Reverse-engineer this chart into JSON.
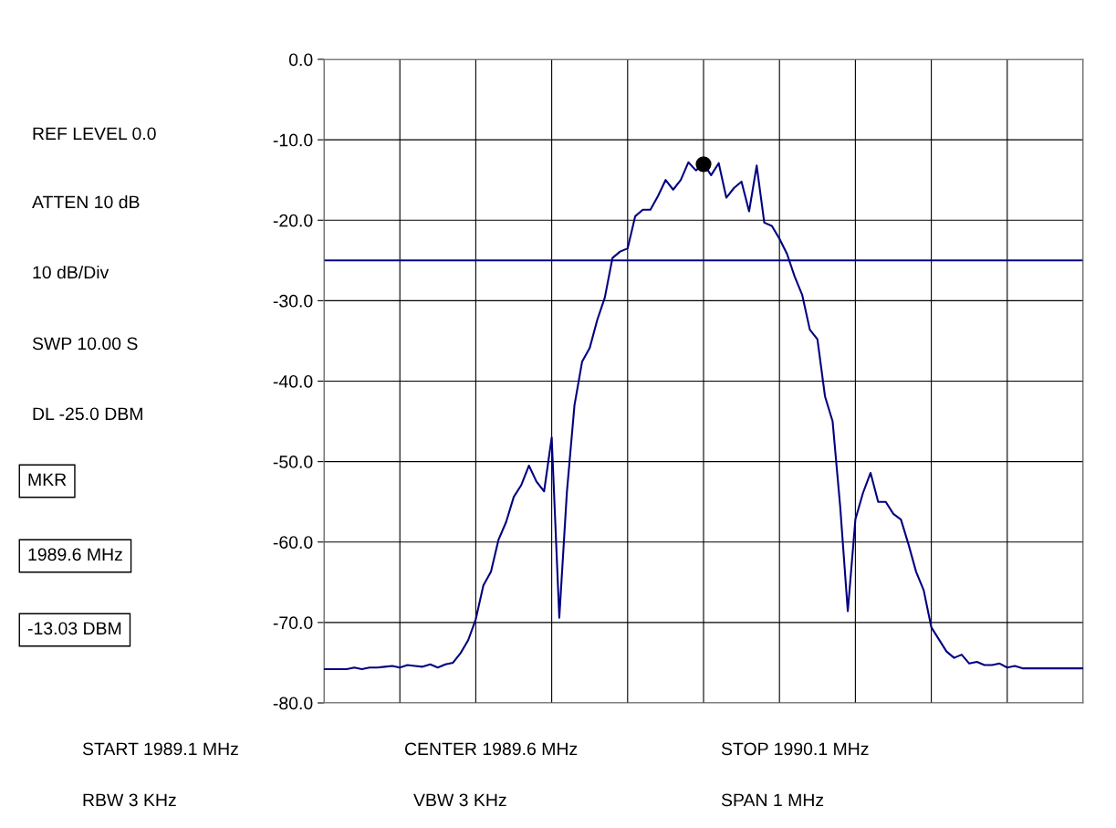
{
  "chart_data": {
    "type": "line",
    "categories": [
      null,
      null,
      null,
      null,
      null,
      null,
      null,
      null,
      null,
      null,
      null,
      null,
      null,
      null,
      null,
      null,
      null,
      null,
      null,
      null,
      null,
      null,
      null,
      null,
      null,
      null,
      null,
      null,
      null,
      null,
      null,
      null,
      null,
      null,
      null,
      null,
      null,
      null,
      null,
      null,
      null,
      null,
      null,
      null,
      null,
      null,
      null,
      null,
      null,
      null,
      null,
      null,
      null,
      null,
      null,
      null,
      null,
      null,
      null,
      null,
      null,
      null,
      null,
      null,
      null,
      null,
      null,
      null,
      null,
      null,
      null,
      null,
      null,
      null,
      null,
      null,
      null,
      null,
      null,
      null,
      null,
      null,
      null,
      null,
      null,
      null,
      null,
      null,
      null,
      null,
      null,
      null,
      null,
      null,
      null,
      null,
      null,
      null,
      null,
      null,
      null
    ],
    "series": [
      {
        "color": "#000080",
        "values": [
          -75.8,
          -75.8,
          -75.8,
          -75.8,
          -75.6,
          -75.8,
          -75.6,
          -75.6,
          -75.5,
          -75.4,
          -75.6,
          -75.3,
          -75.4,
          -75.5,
          -75.2,
          -75.6,
          -75.2,
          -75.0,
          -73.8,
          -72.2,
          -69.6,
          -65.4,
          -63.7,
          -59.7,
          -57.5,
          -54.4,
          -52.9,
          -50.5,
          -52.5,
          -53.7,
          -47.0,
          -69.4,
          -53.8,
          -43.0,
          -37.6,
          -35.9,
          -32.4,
          -29.6,
          -24.7,
          -23.9,
          -23.5,
          -19.5,
          -18.7,
          -18.7,
          -17.0,
          -15.0,
          -16.2,
          -15.0,
          -12.8,
          -13.8,
          -13.0,
          -14.4,
          -12.9,
          -17.2,
          -16.0,
          -15.2,
          -18.9,
          -13.2,
          -20.3,
          -20.7,
          -22.3,
          -24.2,
          -27.0,
          -29.3,
          -33.6,
          -34.8,
          -41.9,
          -45.0,
          -55.6,
          -68.6,
          -57.2,
          -53.9,
          -51.4,
          -55.0,
          -55.0,
          -56.5,
          -57.2,
          -60.3,
          -63.7,
          -66.0,
          -70.6,
          -72.1,
          -73.6,
          -74.4,
          -74.0,
          -75.1,
          -74.9,
          -75.3,
          -75.3,
          -75.1,
          -75.6,
          -75.4,
          -75.7,
          -75.7,
          -75.7,
          -75.7,
          -75.7,
          -75.7,
          -75.7,
          -75.7,
          -75.7
        ]
      },
      {
        "type": "scatter",
        "color": "#000000",
        "marker": "circle",
        "values": [
          null,
          null,
          null,
          null,
          null,
          null,
          null,
          null,
          null,
          null,
          null,
          null,
          null,
          null,
          null,
          null,
          null,
          null,
          null,
          null,
          null,
          null,
          null,
          null,
          null,
          null,
          null,
          null,
          null,
          null,
          null,
          null,
          null,
          null,
          null,
          null,
          null,
          null,
          null,
          null,
          null,
          null,
          null,
          null,
          null,
          null,
          null,
          null,
          null,
          null,
          -13.03,
          null,
          null,
          null,
          null,
          null,
          null,
          null,
          null,
          null,
          null,
          null,
          null,
          null,
          null,
          null,
          null,
          null,
          null,
          null,
          null,
          null,
          null,
          null,
          null,
          null,
          null,
          null,
          null,
          null,
          null,
          null,
          null,
          null,
          null,
          null,
          null,
          null,
          null,
          null,
          null,
          null,
          null,
          null,
          null,
          null,
          null,
          null,
          null,
          null,
          null
        ]
      }
    ],
    "ylim": [
      -80,
      0
    ],
    "yticks": [
      {
        "value": 0,
        "label": "0.0"
      },
      {
        "value": -10,
        "label": "-10.0"
      },
      {
        "value": -20,
        "label": "-20.0"
      },
      {
        "value": -30,
        "label": "-30.0"
      },
      {
        "value": -40,
        "label": "-40.0"
      },
      {
        "value": -50,
        "label": "-50.0"
      },
      {
        "value": -60,
        "label": "-60.0"
      },
      {
        "value": -70,
        "label": "-70.0"
      },
      {
        "value": -80,
        "label": "-80.0"
      }
    ],
    "tick_labels": "y",
    "grid": true,
    "ref_lines": [
      {
        "axis": "y",
        "value": -25.0,
        "color": "#000080"
      }
    ],
    "annotations": [
      "REF LEVEL 0.0",
      "ATTEN 10 dB",
      "10 dB/Div",
      "SWP 10.00 S",
      "DL -25.0 DBM",
      "MKR",
      "1989.6 MHz",
      "-13.03 DBM",
      "START 1989.1 MHz",
      "CENTER 1989.6 MHz",
      "STOP 1990.1 MHz",
      "RBW 3 KHz",
      "VBW 3 KHz",
      "SPAN 1 MHz"
    ]
  }
}
